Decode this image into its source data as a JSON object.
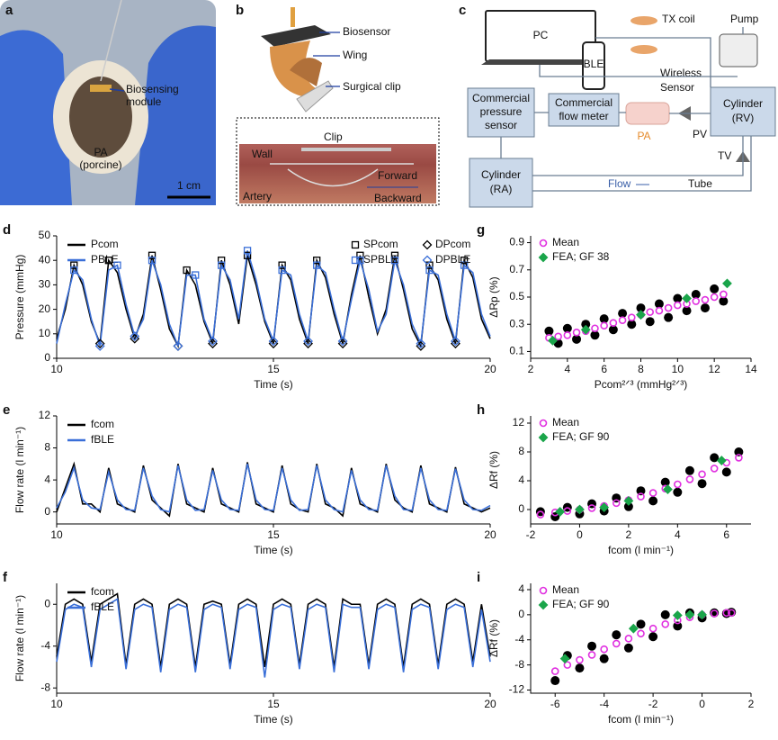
{
  "panel_a": {
    "label": "a",
    "module": [
      "Biosensing",
      "module"
    ],
    "pa": [
      "PA",
      "(porcine)"
    ],
    "scale": "1 cm"
  },
  "panel_b": {
    "label": "b",
    "biosensor": "Biosensor",
    "wing": "Wing",
    "surgical_clip": "Surgical clip",
    "clip": "Clip",
    "wall": "Wall",
    "forward": "Forward",
    "backward": "Backward",
    "artery": "Artery"
  },
  "panel_c": {
    "label": "c",
    "pc": "PC",
    "ble": "BLE",
    "tx": "TX coil",
    "wireless": [
      "Wireless",
      "Sensor"
    ],
    "pump": "Pump",
    "pressure": [
      "Commercial",
      "pressure",
      "sensor"
    ],
    "flow_meter": [
      "Commercial",
      "flow meter"
    ],
    "rv": [
      "Cylinder",
      "(RV)"
    ],
    "ra": [
      "Cylinder",
      "(RA)"
    ],
    "pa": "PA",
    "pv": "PV",
    "tv": "TV",
    "flow": "Flow",
    "tube": "Tube"
  },
  "chart_data": [
    {
      "type": "line",
      "label": "d",
      "xlabel": "Time (s)",
      "ylabel": "Pressure (mmHg)",
      "xlim": [
        10,
        20
      ],
      "ylim": [
        0,
        50
      ],
      "xticks": [
        10,
        15,
        20
      ],
      "yticks": [
        0,
        10,
        20,
        30,
        40,
        50
      ],
      "x": [
        10,
        10.2,
        10.4,
        10.6,
        10.8,
        11,
        11.2,
        11.4,
        11.6,
        11.8,
        12,
        12.2,
        12.4,
        12.6,
        12.8,
        13,
        13.2,
        13.4,
        13.6,
        13.8,
        14,
        14.2,
        14.4,
        14.6,
        14.8,
        15,
        15.2,
        15.4,
        15.6,
        15.8,
        16,
        16.2,
        16.4,
        16.6,
        16.8,
        17,
        17.2,
        17.4,
        17.6,
        17.8,
        18,
        18.2,
        18.4,
        18.6,
        18.8,
        19,
        19.2,
        19.4,
        19.6,
        19.8,
        20
      ],
      "series": [
        {
          "name": "Pcom",
          "color": "#000000",
          "values": [
            8,
            20,
            38,
            30,
            15,
            6,
            40,
            35,
            20,
            8,
            18,
            42,
            28,
            12,
            5,
            36,
            30,
            15,
            6,
            40,
            30,
            14,
            42,
            30,
            15,
            6,
            38,
            32,
            16,
            6,
            40,
            33,
            18,
            6,
            26,
            42,
            25,
            10,
            20,
            42,
            28,
            12,
            5,
            38,
            32,
            16,
            6,
            40,
            33,
            16,
            8
          ]
        },
        {
          "name": "PBLE",
          "color": "#3a6fd8",
          "values": [
            6,
            22,
            36,
            32,
            16,
            5,
            36,
            38,
            22,
            9,
            16,
            40,
            30,
            14,
            5,
            34,
            34,
            16,
            7,
            38,
            32,
            16,
            44,
            32,
            16,
            7,
            36,
            34,
            18,
            7,
            38,
            35,
            20,
            7,
            24,
            40,
            28,
            11,
            18,
            40,
            30,
            14,
            6,
            36,
            34,
            18,
            7,
            38,
            35,
            18,
            9
          ]
        }
      ],
      "markers": [
        {
          "name": "SPcom",
          "color": "#000000",
          "shape": "square",
          "x": [
            10.4,
            11.2,
            12.2,
            13,
            13.8,
            14.4,
            15.2,
            16,
            17,
            17.8,
            18.6,
            19.4
          ],
          "values": [
            38,
            40,
            42,
            36,
            40,
            42,
            38,
            40,
            42,
            42,
            38,
            40
          ]
        },
        {
          "name": "DPcom",
          "color": "#000000",
          "shape": "diamond",
          "x": [
            11,
            11.8,
            12.8,
            13.6,
            15,
            15.8,
            16.6,
            18.4,
            19.2
          ],
          "values": [
            6,
            8,
            5,
            6,
            6,
            6,
            6,
            5,
            6
          ]
        },
        {
          "name": "SPBLE",
          "color": "#3a6fd8",
          "shape": "square",
          "x": [
            10.4,
            11.4,
            12.2,
            13.2,
            13.8,
            14.4,
            15.2,
            16,
            17,
            17.8,
            18.6,
            19.4
          ],
          "values": [
            36,
            38,
            40,
            34,
            38,
            44,
            36,
            38,
            40,
            40,
            36,
            38
          ]
        },
        {
          "name": "DPBLE",
          "color": "#3a6fd8",
          "shape": "diamond",
          "x": [
            11,
            11.8,
            12.8,
            13.6,
            15,
            15.8,
            16.6,
            18.4,
            19.2
          ],
          "values": [
            5,
            9,
            5,
            7,
            7,
            7,
            7,
            6,
            7
          ]
        }
      ]
    },
    {
      "type": "line",
      "label": "e",
      "xlabel": "Time (s)",
      "ylabel": "Flow rate (l min⁻¹)",
      "xlim": [
        10,
        20
      ],
      "ylim": [
        -1.5,
        12
      ],
      "xticks": [
        10,
        15,
        20
      ],
      "yticks": [
        0,
        4,
        8,
        12
      ],
      "x": [
        10,
        10.2,
        10.4,
        10.6,
        10.8,
        11,
        11.2,
        11.4,
        11.6,
        11.8,
        12,
        12.2,
        12.4,
        12.6,
        12.8,
        13,
        13.2,
        13.4,
        13.6,
        13.8,
        14,
        14.2,
        14.4,
        14.6,
        14.8,
        15,
        15.2,
        15.4,
        15.6,
        15.8,
        16,
        16.2,
        16.4,
        16.6,
        16.8,
        17,
        17.2,
        17.4,
        17.6,
        17.8,
        18,
        18.2,
        18.4,
        18.6,
        18.8,
        19,
        19.2,
        19.4,
        19.6,
        19.8,
        20
      ],
      "series": [
        {
          "name": "fcom",
          "color": "#000000",
          "values": [
            0,
            3,
            6,
            1,
            1,
            0,
            5.5,
            1,
            0.5,
            0,
            5.8,
            1.5,
            0.5,
            -0.5,
            6,
            1,
            0.5,
            0,
            5.5,
            1,
            0.5,
            0,
            6.2,
            1,
            0.5,
            0,
            5.8,
            1,
            0.3,
            0,
            6,
            1,
            0.5,
            -0.5,
            5.5,
            1,
            0.5,
            0,
            6,
            1.5,
            0.5,
            0,
            5.8,
            1,
            0.5,
            0,
            5.6,
            1,
            0.5,
            0,
            0.5
          ]
        },
        {
          "name": "fBLE",
          "color": "#3a6fd8",
          "values": [
            0.5,
            2.5,
            5.5,
            1.5,
            0.5,
            0.3,
            5,
            1.5,
            0.3,
            0.2,
            5.5,
            2,
            0.3,
            0,
            5.8,
            1.5,
            0.2,
            0.3,
            5.2,
            1.5,
            0.3,
            0.2,
            6,
            1.5,
            0.3,
            0.2,
            5.5,
            1.5,
            0.2,
            0.3,
            5.8,
            1.5,
            0.3,
            0,
            5.2,
            1.5,
            0.3,
            0.2,
            5.8,
            2,
            0.3,
            0.2,
            5.5,
            1.5,
            0.3,
            0.2,
            5.4,
            1.5,
            0.3,
            0.2,
            0.8
          ]
        }
      ]
    },
    {
      "type": "line",
      "label": "f",
      "xlabel": "Time (s)",
      "ylabel": "Flow rate (l min⁻¹)",
      "xlim": [
        10,
        20
      ],
      "ylim": [
        -8.5,
        2
      ],
      "xticks": [
        10,
        15,
        20
      ],
      "yticks": [
        -8,
        -4,
        0
      ],
      "x": [
        10,
        10.2,
        10.4,
        10.6,
        10.8,
        11,
        11.2,
        11.4,
        11.6,
        11.8,
        12,
        12.2,
        12.4,
        12.6,
        12.8,
        13,
        13.2,
        13.4,
        13.6,
        13.8,
        14,
        14.2,
        14.4,
        14.6,
        14.8,
        15,
        15.2,
        15.4,
        15.6,
        15.8,
        16,
        16.2,
        16.4,
        16.6,
        16.8,
        17,
        17.2,
        17.4,
        17.6,
        17.8,
        18,
        18.2,
        18.4,
        18.6,
        18.8,
        19,
        19.2,
        19.4,
        19.6,
        19.8,
        20
      ],
      "series": [
        {
          "name": "fcom",
          "color": "#000000",
          "values": [
            -5,
            0,
            0.5,
            0,
            -5.5,
            0,
            0.5,
            1,
            -5.8,
            0,
            0.5,
            0,
            -6,
            0,
            0.5,
            0,
            -6,
            0,
            0.3,
            0,
            -5.8,
            0,
            0.5,
            0,
            -6,
            0,
            0.5,
            0,
            -5.8,
            0,
            0.5,
            0,
            -6,
            0.5,
            0,
            0,
            -5.8,
            0,
            0.5,
            0,
            -6,
            0,
            0.5,
            0,
            -5.8,
            0,
            0.5,
            0,
            -5.5,
            0,
            -5
          ]
        },
        {
          "name": "fBLE",
          "color": "#3a6fd8",
          "values": [
            -5.5,
            -0.5,
            0,
            -0.3,
            -6,
            -0.5,
            0,
            0.5,
            -6.2,
            -0.5,
            0,
            -0.3,
            -6.5,
            -0.5,
            0,
            -0.3,
            -6.5,
            -0.5,
            0,
            -0.3,
            -6.2,
            -0.5,
            0,
            -0.3,
            -7,
            -0.5,
            0,
            -0.3,
            -6.2,
            -0.5,
            0,
            -0.3,
            -6.5,
            0,
            -0.3,
            -0.3,
            -6.2,
            -0.5,
            0,
            -0.3,
            -6.5,
            -0.5,
            0,
            -0.3,
            -6.2,
            -0.5,
            0,
            -0.3,
            -6,
            -0.5,
            -5.5
          ]
        }
      ]
    },
    {
      "type": "scatter",
      "label": "g",
      "xlabel": "Pcom²ᐟ³ (mmHg²ᐟ³)",
      "ylabel": "ΔRp (%)",
      "xlim": [
        2,
        14
      ],
      "ylim": [
        0.05,
        0.95
      ],
      "xticks": [
        2,
        4,
        6,
        8,
        10,
        12,
        14
      ],
      "yticks": [
        0.1,
        0.3,
        0.5,
        0.7,
        0.9
      ],
      "series": [
        {
          "color": "#000000",
          "shape": "dot",
          "x": [
            3,
            3.5,
            4,
            4.5,
            5,
            5.5,
            6,
            6.5,
            7,
            7.5,
            8,
            8.5,
            9,
            9.5,
            10,
            10.5,
            11,
            11.5,
            12,
            12.5
          ],
          "values": [
            0.25,
            0.16,
            0.27,
            0.19,
            0.3,
            0.22,
            0.34,
            0.26,
            0.38,
            0.3,
            0.42,
            0.32,
            0.45,
            0.35,
            0.49,
            0.4,
            0.52,
            0.42,
            0.56,
            0.47
          ]
        },
        {
          "name": "Mean",
          "color": "#e030e0",
          "shape": "circle",
          "x": [
            3,
            3.5,
            4,
            4.5,
            5,
            5.5,
            6,
            6.5,
            7,
            7.5,
            8,
            8.5,
            9,
            9.5,
            10,
            10.5,
            11,
            11.5,
            12,
            12.5
          ],
          "values": [
            0.2,
            0.21,
            0.22,
            0.24,
            0.25,
            0.27,
            0.29,
            0.31,
            0.33,
            0.35,
            0.37,
            0.39,
            0.4,
            0.42,
            0.44,
            0.45,
            0.47,
            0.48,
            0.5,
            0.52
          ]
        },
        {
          "name": "FEA; GF 38",
          "color": "#1aa54a",
          "shape": "diamond",
          "filled": true,
          "x": [
            3.2,
            5,
            8,
            10.5,
            12.7
          ],
          "values": [
            0.18,
            0.26,
            0.37,
            0.49,
            0.6
          ]
        }
      ]
    },
    {
      "type": "scatter",
      "label": "h",
      "xlabel": "fcom (l min⁻¹)",
      "ylabel": "ΔRf (%)",
      "xlim": [
        -2,
        7
      ],
      "ylim": [
        -2,
        13
      ],
      "xticks": [
        -2,
        0,
        2,
        4,
        6
      ],
      "yticks": [
        0,
        4,
        8,
        12
      ],
      "series": [
        {
          "color": "#000000",
          "shape": "dot",
          "x": [
            -1.6,
            -1,
            -0.5,
            0,
            0.5,
            1,
            1.5,
            2,
            2.5,
            3,
            3.5,
            4,
            4.5,
            5,
            5.5,
            6,
            6.5
          ],
          "values": [
            -0.3,
            -1,
            0.3,
            -0.6,
            0.8,
            -0.2,
            1.6,
            0.4,
            2.6,
            1.2,
            3.8,
            2.4,
            5.4,
            3.6,
            7.2,
            5.2,
            8
          ]
        },
        {
          "name": "Mean",
          "color": "#e030e0",
          "shape": "circle",
          "x": [
            -1.6,
            -1,
            -0.5,
            0,
            0.5,
            1,
            1.5,
            2,
            2.5,
            3,
            3.5,
            4,
            4.5,
            5,
            5.5,
            6,
            6.5
          ],
          "values": [
            -0.7,
            -0.4,
            -0.2,
            0,
            0.2,
            0.5,
            0.9,
            1.3,
            1.8,
            2.3,
            2.9,
            3.5,
            4.2,
            4.9,
            5.7,
            6.5,
            7.2
          ]
        },
        {
          "name": "FEA; GF 90",
          "color": "#1aa54a",
          "shape": "diamond",
          "filled": true,
          "x": [
            -0.8,
            0,
            1,
            2,
            3.6,
            5.8
          ],
          "values": [
            -0.3,
            0,
            0.3,
            1.2,
            2.8,
            6.8
          ]
        }
      ]
    },
    {
      "type": "scatter",
      "label": "i",
      "xlabel": "fcom (l min⁻¹)",
      "ylabel": "ΔRf (%)",
      "xlim": [
        -7,
        2
      ],
      "ylim": [
        -12.5,
        5
      ],
      "xticks": [
        -6,
        -4,
        -2,
        0,
        2
      ],
      "yticks": [
        -12,
        -8,
        -4,
        0,
        4
      ],
      "series": [
        {
          "color": "#000000",
          "shape": "dot",
          "x": [
            -6,
            -5.5,
            -5,
            -4.5,
            -4,
            -3.5,
            -3,
            -2.5,
            -2,
            -1.5,
            -1,
            -0.5,
            0,
            0.5,
            1,
            1.2
          ],
          "values": [
            -10.5,
            -6.5,
            -8.5,
            -5,
            -7,
            -3.2,
            -5.3,
            -1.5,
            -3.5,
            0,
            -1.8,
            0.3,
            -0.5,
            0.3,
            0.2,
            0.4
          ]
        },
        {
          "name": "Mean",
          "color": "#e030e0",
          "shape": "circle",
          "x": [
            -6,
            -5.5,
            -5,
            -4.5,
            -4,
            -3.5,
            -3,
            -2.5,
            -2,
            -1.5,
            -1,
            -0.5,
            0,
            0.5,
            1,
            1.2
          ],
          "values": [
            -9,
            -8,
            -7.2,
            -6.4,
            -5.5,
            -4.6,
            -3.8,
            -3,
            -2.2,
            -1.5,
            -0.9,
            -0.4,
            0,
            0.2,
            0.3,
            0.3
          ]
        },
        {
          "name": "FEA; GF 90",
          "color": "#1aa54a",
          "shape": "diamond",
          "filled": true,
          "x": [
            -5.6,
            -2.8,
            -1,
            -0.5,
            0
          ],
          "values": [
            -7,
            -2.2,
            -0.1,
            0,
            0
          ]
        }
      ]
    }
  ]
}
